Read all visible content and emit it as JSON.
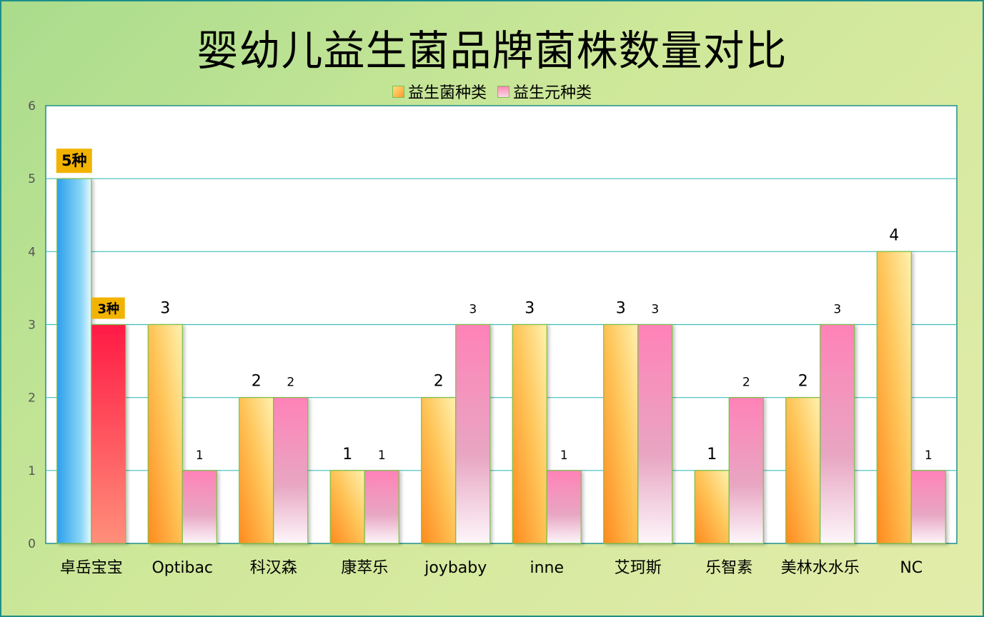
{
  "title": "婴幼儿益生菌品牌菌株数量对比",
  "chart_data": {
    "type": "bar",
    "title": "婴幼儿益生菌品牌菌株数量对比",
    "categories": [
      "卓岳宝宝",
      "Optibac",
      "科汉森",
      "康萃乐",
      "joybaby",
      "inne",
      "艾珂斯",
      "乐智素",
      "美林水水乐",
      "NC"
    ],
    "series": [
      {
        "name": "益生菌种类",
        "values": [
          5,
          3,
          2,
          1,
          2,
          3,
          3,
          1,
          2,
          4
        ],
        "data_labels": [
          "5种",
          "3",
          "2",
          "1",
          "2",
          "3",
          "3",
          "1",
          "2",
          "4"
        ]
      },
      {
        "name": "益生元种类",
        "values": [
          3,
          1,
          2,
          1,
          3,
          1,
          3,
          2,
          3,
          1
        ],
        "data_labels": [
          "3种",
          "1",
          "2",
          "1",
          "3",
          "1",
          "3",
          "2",
          "3",
          "1"
        ]
      }
    ],
    "y_ticks": [
      "0",
      "1",
      "2",
      "3",
      "4",
      "5",
      "6"
    ],
    "ylim": [
      0,
      6
    ],
    "xlabel": "",
    "ylabel": "",
    "grid": true,
    "legend_position": "top-center",
    "highlight_category": "卓岳宝宝",
    "colors": {
      "series0": "#ffb43c",
      "series1": "#f27fae",
      "highlight0": "#3aa8ee",
      "highlight1": "#ff2a4a",
      "callout_bg": "#f2b300",
      "grid": "#3fbdb8",
      "plot_border": "#1f8f8a"
    }
  }
}
